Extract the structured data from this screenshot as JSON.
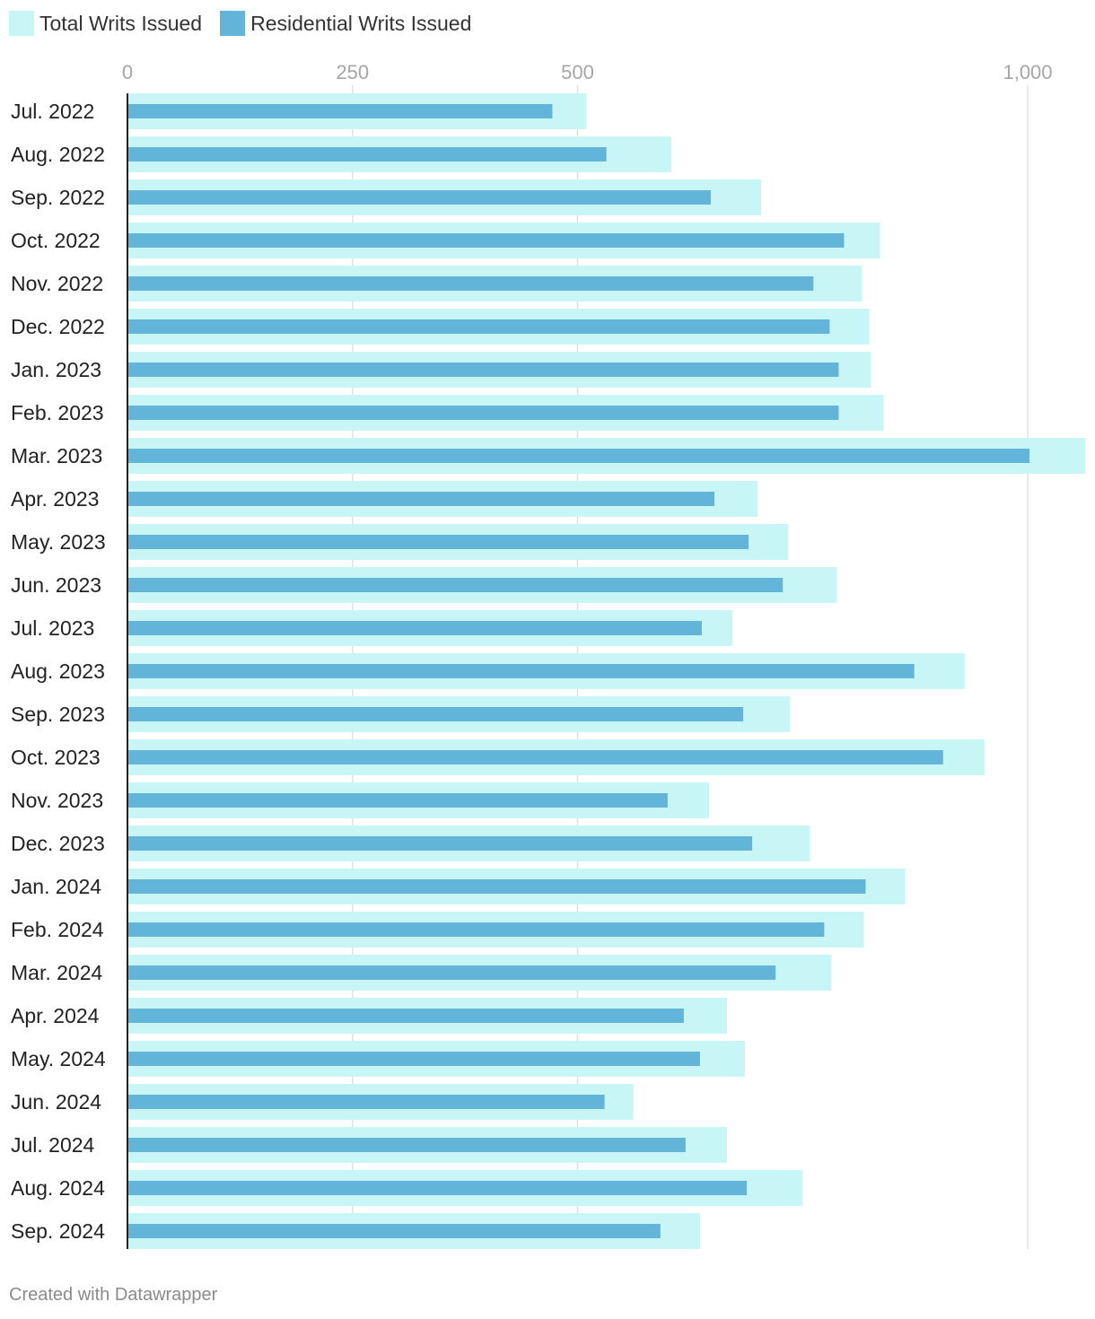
{
  "colors": {
    "total": "#c8f5f5",
    "residential": "#62b4d9",
    "grid": "#e0e0e0",
    "axis": "#222222",
    "tick_text": "#a6a6a6",
    "label_text": "#222222"
  },
  "chart_data": {
    "type": "bar",
    "orientation": "horizontal",
    "title": "",
    "xlabel": "",
    "ylabel": "",
    "xlim": [
      0,
      1060
    ],
    "ticks": [
      0,
      250,
      500,
      1000
    ],
    "tick_labels": [
      "0",
      "250",
      "500",
      "1,000"
    ],
    "grid": true,
    "legend_position": "top-left",
    "categories": [
      "Jul. 2022",
      "Aug. 2022",
      "Sep. 2022",
      "Oct. 2022",
      "Nov. 2022",
      "Dec. 2022",
      "Jan. 2023",
      "Feb. 2023",
      "Mar. 2023",
      "Apr. 2023",
      "May. 2023",
      "Jun. 2023",
      "Jul. 2023",
      "Aug. 2023",
      "Sep. 2023",
      "Oct. 2023",
      "Nov. 2023",
      "Dec. 2023",
      "Jan. 2024",
      "Feb. 2024",
      "Mar. 2024",
      "Apr. 2024",
      "May. 2024",
      "Jun. 2024",
      "Jul. 2024",
      "Aug. 2024",
      "Sep. 2024"
    ],
    "series": [
      {
        "name": "Total Writs Issued",
        "values": [
          510,
          604,
          704,
          836,
          816,
          824,
          826,
          840,
          1064,
          700,
          734,
          788,
          672,
          930,
          736,
          952,
          646,
          758,
          864,
          818,
          782,
          666,
          686,
          562,
          666,
          750,
          636
        ]
      },
      {
        "name": "Residential Writs Issued",
        "values": [
          472,
          532,
          648,
          796,
          762,
          780,
          790,
          790,
          1002,
          652,
          690,
          728,
          638,
          874,
          684,
          906,
          600,
          694,
          820,
          774,
          720,
          618,
          636,
          530,
          620,
          688,
          592
        ]
      }
    ]
  },
  "footer": {
    "credit": "Created with Datawrapper"
  }
}
